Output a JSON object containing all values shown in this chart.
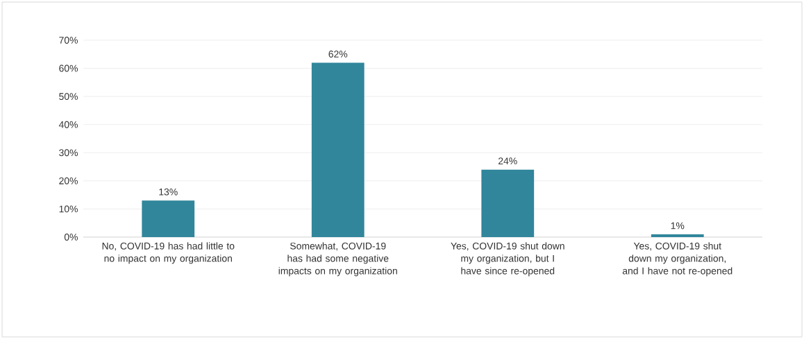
{
  "chart_data": {
    "type": "bar",
    "categories": [
      "No, COVID-19 has had little to no impact on my organization",
      "Somewhat, COVID-19 has had some negative impacts on my organization",
      "Yes, COVID-19 shut down my organization, but I have since re-opened",
      "Yes, COVID-19 shut down my organization, and I have not re-opened"
    ],
    "values": [
      13,
      62,
      24,
      1
    ],
    "value_labels": [
      "13%",
      "62%",
      "24%",
      "1%"
    ],
    "color": "#31869b",
    "ylim": [
      0,
      70
    ],
    "yticks": [
      {
        "value": 0,
        "label": "0%"
      },
      {
        "value": 10,
        "label": "10%"
      },
      {
        "value": 20,
        "label": "20%"
      },
      {
        "value": 30,
        "label": "30%"
      },
      {
        "value": 40,
        "label": "40%"
      },
      {
        "value": 50,
        "label": "50%"
      },
      {
        "value": 60,
        "label": "60%"
      },
      {
        "value": 70,
        "label": "70%"
      }
    ],
    "grid": "y"
  }
}
